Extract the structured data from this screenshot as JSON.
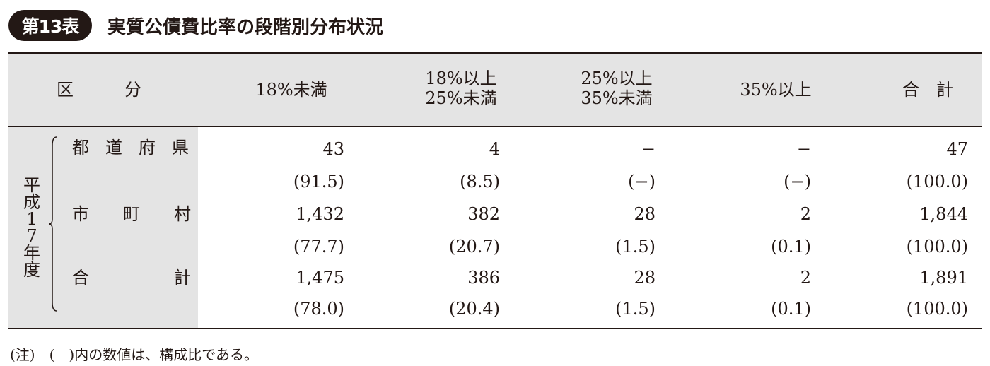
{
  "title_badge": "第13表",
  "title": "実質公債費比率の段階別分布状況",
  "header": {
    "kubun": "区　　　分",
    "col1": "18%未満",
    "col2_line1": "18%以上",
    "col2_line2": "25%未満",
    "col3_line1": "25%以上",
    "col3_line2": "35%未満",
    "col4": "35%以上",
    "col5": "合　計"
  },
  "year_label": "平成17年度",
  "rows": [
    {
      "label": "都 道 府 県",
      "counts": [
        "43",
        "4",
        "−",
        "−",
        "47"
      ],
      "ratios": [
        "(91.5)",
        "(8.5)",
        "(−)",
        "(−)",
        "(100.0)"
      ]
    },
    {
      "label": "市　　町　　村",
      "counts": [
        "1,432",
        "382",
        "28",
        "2",
        "1,844"
      ],
      "ratios": [
        "(77.7)",
        "(20.7)",
        "(1.5)",
        "(0.1)",
        "(100.0)"
      ]
    },
    {
      "label": "合　　　　　計",
      "counts": [
        "1,475",
        "386",
        "28",
        "2",
        "1,891"
      ],
      "ratios": [
        "(78.0)",
        "(20.4)",
        "(1.5)",
        "(0.1)",
        "(100.0)"
      ]
    }
  ],
  "note": "(注)　(　)内の数値は、構成比である。"
}
